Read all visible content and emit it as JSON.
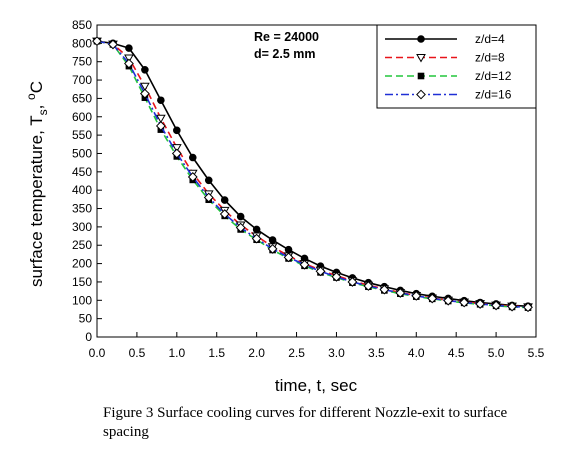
{
  "chart_data": {
    "type": "line",
    "xlabel": "time, t, sec",
    "ylabel": "surface temperature, T",
    "ylabel_subscript": "s",
    "ylabel_unit_sup": "o",
    "ylabel_unit": "C",
    "xlim": [
      0,
      5.5
    ],
    "ylim": [
      0,
      850
    ],
    "xticks": [
      "0.0",
      "0.5",
      "1.0",
      "1.5",
      "2.0",
      "2.5",
      "3.0",
      "3.5",
      "4.0",
      "4.5",
      "5.0",
      "5.5"
    ],
    "yticks": [
      "0",
      "50",
      "100",
      "150",
      "200",
      "250",
      "300",
      "350",
      "400",
      "450",
      "500",
      "550",
      "600",
      "650",
      "700",
      "750",
      "800",
      "850"
    ],
    "annotations": [
      "Re = 24000",
      "d= 2.5 mm"
    ],
    "grid": false,
    "legend_position": "top-right",
    "series": [
      {
        "name": "z/d=4",
        "color": "#000000",
        "dash": "solid",
        "marker": "filled-circle",
        "x": [
          0.0,
          0.2,
          0.4,
          0.6,
          0.8,
          1.0,
          1.2,
          1.4,
          1.6,
          1.8,
          2.0,
          2.2,
          2.4,
          2.6,
          2.8,
          3.0,
          3.2,
          3.4,
          3.6,
          3.8,
          4.0,
          4.2,
          4.4,
          4.6,
          4.8,
          5.0,
          5.2,
          5.4
        ],
        "y": [
          806,
          800,
          787,
          728,
          645,
          563,
          489,
          427,
          373,
          328,
          293,
          264,
          238,
          214,
          193,
          176,
          161,
          148,
          137,
          127,
          118,
          111,
          105,
          99,
          94,
          90,
          86,
          84
        ]
      },
      {
        "name": "z/d=8",
        "color": "#e8141a",
        "dash": "dashed",
        "marker": "open-triangle-down",
        "x": [
          0.0,
          0.2,
          0.4,
          0.6,
          0.8,
          1.0,
          1.2,
          1.4,
          1.6,
          1.8,
          2.0,
          2.2,
          2.4,
          2.6,
          2.8,
          3.0,
          3.2,
          3.4,
          3.6,
          3.8,
          4.0,
          4.2,
          4.4,
          4.6,
          4.8,
          5.0,
          5.2,
          5.4
        ],
        "y": [
          806,
          798,
          760,
          683,
          596,
          516,
          446,
          390,
          345,
          305,
          275,
          246,
          221,
          200,
          182,
          167,
          153,
          141,
          131,
          121,
          113,
          106,
          100,
          95,
          91,
          87,
          84,
          82
        ]
      },
      {
        "name": "z/d=12",
        "color": "#22c53c",
        "dash": "dashed",
        "marker": "filled-square",
        "x": [
          0.0,
          0.2,
          0.4,
          0.6,
          0.8,
          1.0,
          1.2,
          1.4,
          1.6,
          1.8,
          2.0,
          2.2,
          2.4,
          2.6,
          2.8,
          3.0,
          3.2,
          3.4,
          3.6,
          3.8,
          4.0,
          4.2,
          4.4,
          4.6,
          4.8,
          5.0,
          5.2,
          5.4
        ],
        "y": [
          806,
          797,
          738,
          652,
          565,
          492,
          428,
          374,
          330,
          293,
          265,
          237,
          214,
          194,
          176,
          162,
          148,
          137,
          127,
          118,
          110,
          104,
          98,
          93,
          89,
          85,
          82,
          80
        ]
      },
      {
        "name": "z/d=16",
        "color": "#1f2fd6",
        "dash": "dashdot",
        "marker": "open-diamond",
        "x": [
          0.0,
          0.2,
          0.4,
          0.6,
          0.8,
          1.0,
          1.2,
          1.4,
          1.6,
          1.8,
          2.0,
          2.2,
          2.4,
          2.6,
          2.8,
          3.0,
          3.2,
          3.4,
          3.6,
          3.8,
          4.0,
          4.2,
          4.4,
          4.6,
          4.8,
          5.0,
          5.2,
          5.4
        ],
        "y": [
          806,
          797,
          745,
          663,
          575,
          500,
          436,
          380,
          335,
          298,
          268,
          240,
          217,
          197,
          179,
          164,
          150,
          139,
          129,
          120,
          112,
          105,
          99,
          94,
          90,
          86,
          83,
          81
        ]
      }
    ]
  },
  "caption": {
    "text": "Figure 3 Surface cooling curves for different Nozzle-exit to surface spacing"
  }
}
